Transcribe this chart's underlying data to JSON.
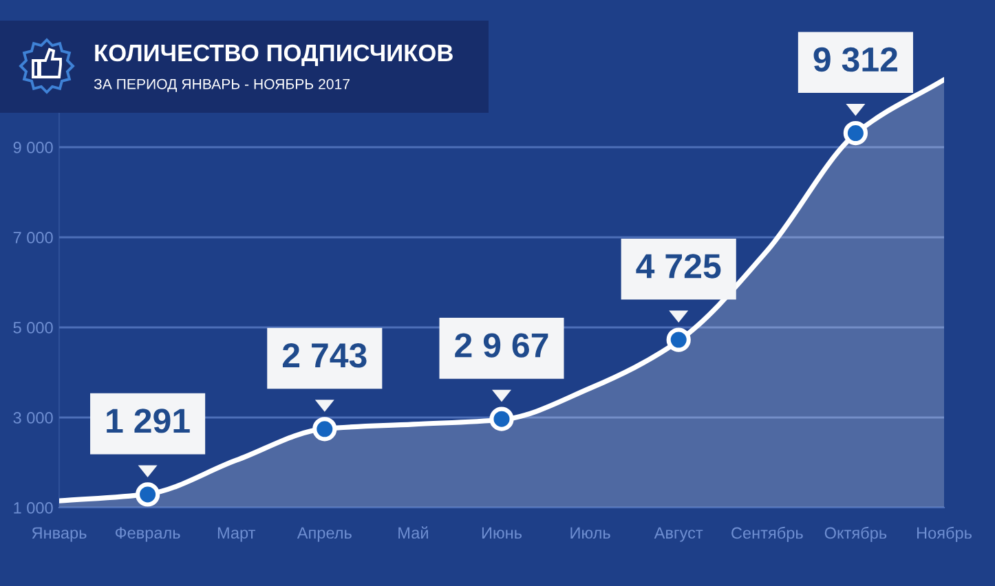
{
  "chart_data": {
    "type": "area",
    "title": "КОЛИЧЕСТВО ПОДПИСЧИКОВ",
    "subtitle": "ЗА ПЕРИОД ЯНВАРЬ - НОЯБРЬ 2017",
    "categories": [
      "Январь",
      "Февраль",
      "Март",
      "Апрель",
      "Май",
      "Июнь",
      "Июль",
      "Август",
      "Сентябрь",
      "Октябрь",
      "Ноябрь"
    ],
    "series": [
      {
        "color": "#ffffff",
        "values": [
          1150,
          1300,
          2050,
          2750,
          2850,
          2950,
          3650,
          4700,
          6700,
          9300,
          10500
        ]
      },
      {
        "type": "scatter",
        "color": "#1565c0",
        "marker": "circle",
        "values": [
          null,
          1291,
          null,
          2743,
          null,
          2967,
          null,
          4725,
          null,
          9312,
          null
        ],
        "value_labels": [
          null,
          "1 291",
          null,
          "2 743",
          null,
          "2 9 67",
          null,
          "4 725",
          null,
          "9 312",
          null
        ]
      }
    ],
    "ylim": [
      1000,
      11000
    ],
    "yticks": [
      {
        "value": 1000,
        "label": "1 000"
      },
      {
        "value": 3000,
        "label": "3 000"
      },
      {
        "value": 5000,
        "label": "5 000"
      },
      {
        "value": 7000,
        "label": "7 000"
      },
      {
        "value": 9000,
        "label": "9 000"
      }
    ],
    "grid": "y"
  }
}
